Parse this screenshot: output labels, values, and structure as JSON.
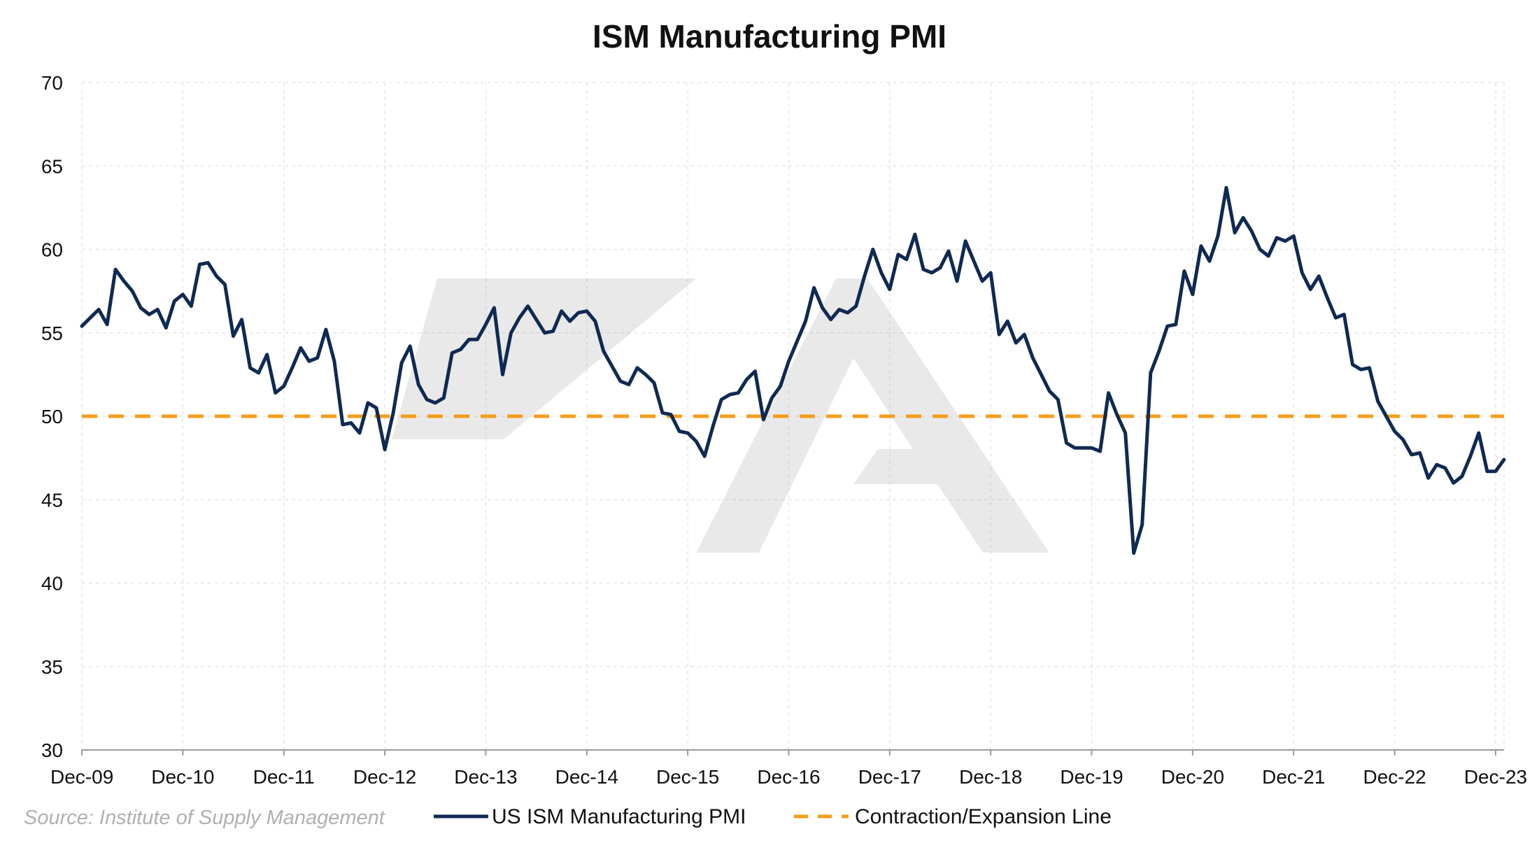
{
  "chart_data": {
    "type": "line",
    "title": "ISM Manufacturing PMI",
    "source": "Source: Institute of Supply Management",
    "xlabel": "",
    "ylabel": "",
    "ylim": [
      30,
      70
    ],
    "yticks": [
      30,
      35,
      40,
      45,
      50,
      55,
      60,
      65,
      70
    ],
    "x_tick_labels": [
      "Dec-09",
      "Dec-10",
      "Dec-11",
      "Dec-12",
      "Dec-13",
      "Dec-14",
      "Dec-15",
      "Dec-16",
      "Dec-17",
      "Dec-18",
      "Dec-19",
      "Dec-20",
      "Dec-21",
      "Dec-22",
      "Dec-23"
    ],
    "x_range": {
      "start": "Dec-09",
      "end": "Jan-24"
    },
    "grid": true,
    "legend_position": "bottom",
    "series": [
      {
        "name": "US ISM Manufacturing PMI",
        "color": "#0f2a52",
        "style": "solid",
        "start": "Dec-09",
        "frequency": "monthly",
        "values": [
          55.4,
          55.9,
          56.4,
          55.5,
          58.8,
          58.1,
          57.5,
          56.5,
          56.1,
          56.4,
          55.3,
          56.9,
          57.3,
          56.6,
          59.1,
          59.2,
          58.4,
          57.9,
          54.8,
          55.8,
          52.9,
          52.6,
          53.7,
          51.4,
          51.8,
          52.9,
          54.1,
          53.3,
          53.5,
          55.2,
          53.3,
          49.5,
          49.6,
          49.0,
          50.8,
          50.5,
          48.0,
          50.2,
          53.2,
          54.2,
          51.9,
          51.0,
          50.8,
          51.1,
          53.8,
          54.0,
          54.6,
          54.6,
          55.5,
          56.5,
          52.5,
          55.0,
          55.9,
          56.6,
          55.8,
          55.0,
          55.1,
          56.3,
          55.7,
          56.2,
          56.3,
          55.7,
          53.9,
          53.0,
          52.1,
          51.9,
          52.9,
          52.5,
          52.0,
          50.2,
          50.1,
          49.1,
          49.0,
          48.5,
          47.6,
          49.4,
          51.0,
          51.3,
          51.4,
          52.2,
          52.7,
          49.8,
          51.1,
          51.8,
          53.3,
          54.5,
          55.7,
          57.7,
          56.5,
          55.8,
          56.4,
          56.2,
          56.6,
          58.4,
          60.0,
          58.6,
          57.6,
          59.7,
          59.4,
          60.9,
          58.8,
          58.6,
          58.9,
          59.9,
          58.1,
          60.5,
          59.3,
          58.1,
          58.6,
          54.9,
          55.7,
          54.4,
          54.9,
          53.5,
          52.5,
          51.5,
          51.0,
          48.4,
          48.1,
          48.1,
          48.1,
          47.9,
          51.4,
          50.1,
          49.0,
          41.8,
          43.5,
          52.6,
          53.9,
          55.4,
          55.5,
          58.7,
          57.3,
          60.2,
          59.3,
          60.8,
          63.7,
          61.0,
          61.9,
          61.1,
          60.0,
          59.6,
          60.7,
          60.5,
          60.8,
          58.6,
          57.6,
          58.4,
          57.1,
          55.9,
          56.1,
          53.1,
          52.8,
          52.9,
          50.9,
          50.0,
          49.1,
          48.6,
          47.7,
          47.8,
          46.3,
          47.1,
          46.9,
          46.0,
          46.4,
          47.6,
          49.0,
          46.7,
          46.7,
          47.4
        ]
      },
      {
        "name": "Contraction/Expansion Line",
        "color": "#f59d1a",
        "style": "dashed",
        "constant": 50
      }
    ]
  }
}
